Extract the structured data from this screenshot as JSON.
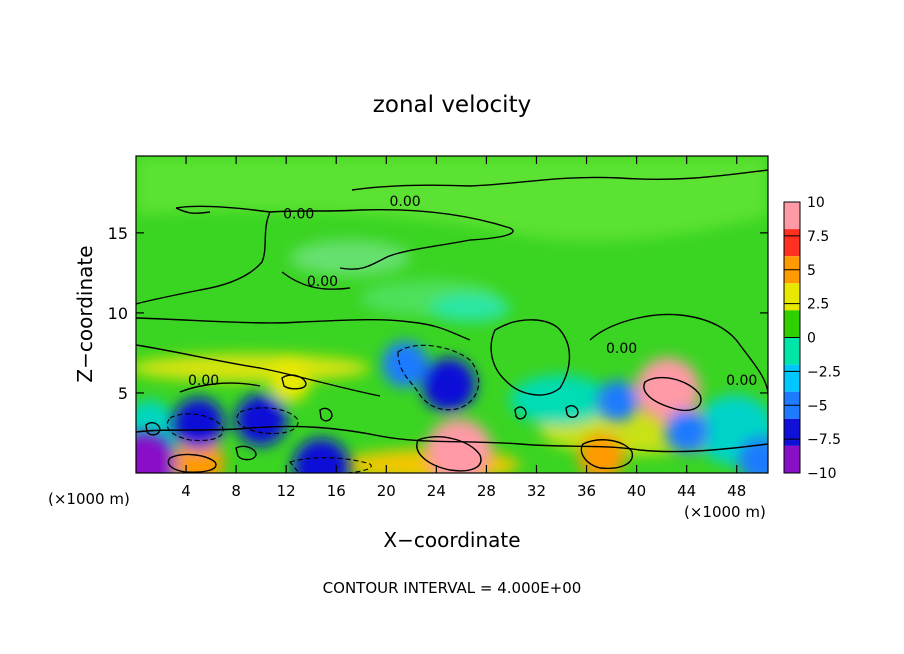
{
  "chart_data": {
    "type": "heatmap",
    "title": "zonal velocity",
    "xlabel": "X−coordinate",
    "ylabel": "Z−coordinate",
    "x_unit_left": "(×1000 m)",
    "x_unit_right": "(×1000 m)",
    "footer": "CONTOUR INTERVAL = 4.000E+00",
    "xlim": [
      0,
      50.5
    ],
    "ylim": [
      0,
      19.8
    ],
    "x_ticks": [
      4,
      8,
      12,
      16,
      20,
      24,
      28,
      32,
      36,
      40,
      44,
      48
    ],
    "x_tick_labels": [
      "4",
      "8",
      "12",
      "16",
      "20",
      "24",
      "28",
      "32",
      "36",
      "40",
      "44",
      "48"
    ],
    "y_ticks": [
      5,
      10,
      15
    ],
    "y_tick_labels": [
      "5",
      "10",
      "15"
    ],
    "colorbar": {
      "range": [
        -10,
        10
      ],
      "ticks": [
        10,
        7.5,
        5,
        2.5,
        0,
        -2.5,
        -5,
        -7.5,
        -10
      ],
      "tick_labels": [
        "10",
        "7.5",
        "5",
        "2.5",
        "0",
        "−2.5",
        "−5",
        "−7.5",
        "−10"
      ],
      "colors": [
        "#ff9aa6",
        "#ff3020",
        "#ff9a00",
        "#e8e800",
        "#30d000",
        "#00e6a8",
        "#00c8ff",
        "#1e7aff",
        "#1010d8",
        "#8a10c8"
      ]
    },
    "contour_labels": [
      {
        "text": "0.00",
        "x": 13.0,
        "y": 16.2
      },
      {
        "text": "0.00",
        "x": 21.5,
        "y": 17.0
      },
      {
        "text": "0.00",
        "x": 14.9,
        "y": 12.0
      },
      {
        "text": "0.00",
        "x": 5.4,
        "y": 5.8
      },
      {
        "text": "0.00",
        "x": 38.8,
        "y": 7.8
      },
      {
        "text": "0.00",
        "x": 48.4,
        "y": 5.8
      }
    ],
    "field_features": [
      {
        "value": 8.5,
        "x": 42.5,
        "y": 5.2
      },
      {
        "value": 9.0,
        "x": 25.8,
        "y": 1.3
      },
      {
        "value": 6.0,
        "x": 5.0,
        "y": 0.7
      },
      {
        "value": 5.0,
        "x": 37.2,
        "y": 1.0
      },
      {
        "value": 4.0,
        "x": 12.3,
        "y": 5.7
      },
      {
        "value": -6.5,
        "x": 25.0,
        "y": 5.5
      },
      {
        "value": -6.0,
        "x": 5.0,
        "y": 3.1
      },
      {
        "value": -6.0,
        "x": 10.0,
        "y": 3.3
      },
      {
        "value": -7.0,
        "x": 14.8,
        "y": 0.4
      },
      {
        "value": -5.0,
        "x": 21.5,
        "y": 6.8
      },
      {
        "value": -4.5,
        "x": 44.0,
        "y": 2.6
      },
      {
        "value": -4.0,
        "x": 38.5,
        "y": 4.5
      },
      {
        "value": -8.0,
        "x": 0.7,
        "y": 0.6
      },
      {
        "value": -5.0,
        "x": 50.0,
        "y": 0.8
      }
    ]
  }
}
